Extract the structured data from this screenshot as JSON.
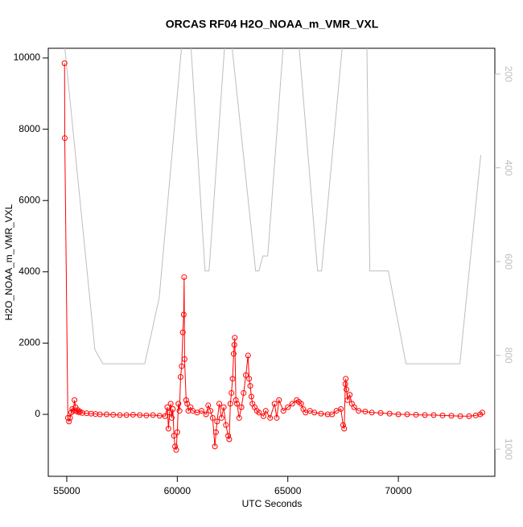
{
  "chart_data": {
    "type": "line",
    "title": "ORCAS RF04 H2O_NOAA_m_VMR_VXL",
    "x_label": "UTC Seconds",
    "y_label": "H2O_NOAA_m_VMR_VXL",
    "xlim": [
      54164,
      74364
    ],
    "ylim": [
      -1738,
      10271
    ],
    "y2lim": [
      1058,
      145
    ],
    "xticks": [
      55000,
      60000,
      65000,
      70000
    ],
    "yticks": [
      0,
      2000,
      4000,
      6000,
      8000,
      10000
    ],
    "y2ticks": [
      200,
      400,
      600,
      800,
      1000
    ],
    "series": [
      {
        "color": "#ff0000",
        "marker": "circle",
        "x": [
          54900,
          54910,
          55050,
          55100,
          55150,
          55200,
          55250,
          55300,
          55350,
          55400,
          55450,
          55500,
          55550,
          55600,
          55700,
          55900,
          56100,
          56300,
          56500,
          56800,
          57100,
          57400,
          57700,
          58000,
          58300,
          58600,
          58900,
          59200,
          59450,
          59550,
          59600,
          59650,
          59700,
          59750,
          59800,
          59850,
          59900,
          59950,
          60000,
          60050,
          60100,
          60150,
          60200,
          60250,
          60290,
          60310,
          60330,
          60400,
          60450,
          60500,
          60600,
          60700,
          60900,
          61100,
          61300,
          61400,
          61500,
          61600,
          61700,
          61750,
          61800,
          61900,
          62000,
          62100,
          62200,
          62300,
          62350,
          62400,
          62450,
          62500,
          62550,
          62580,
          62600,
          62650,
          62700,
          62800,
          62900,
          63000,
          63100,
          63200,
          63250,
          63300,
          63350,
          63400,
          63500,
          63600,
          63700,
          63900,
          64000,
          64200,
          64400,
          64500,
          64600,
          64800,
          65000,
          65200,
          65400,
          65500,
          65600,
          65700,
          65800,
          66000,
          66200,
          66500,
          66800,
          67000,
          67200,
          67400,
          67500,
          67550,
          67600,
          67620,
          67650,
          67700,
          67800,
          67900,
          68000,
          68200,
          68500,
          68800,
          69200,
          69600,
          70000,
          70400,
          70800,
          71200,
          71600,
          72000,
          72400,
          72800,
          73200,
          73500,
          73700,
          73800
        ],
        "values": [
          9850,
          7750,
          -100,
          -200,
          -100,
          50,
          150,
          100,
          400,
          200,
          80,
          120,
          60,
          80,
          40,
          30,
          20,
          10,
          0,
          0,
          -10,
          -20,
          -20,
          -10,
          -20,
          -30,
          -20,
          -40,
          -50,
          200,
          -400,
          50,
          300,
          -100,
          150,
          -600,
          -900,
          -1000,
          -500,
          300,
          100,
          1050,
          1350,
          2300,
          2800,
          3850,
          1550,
          400,
          300,
          100,
          200,
          100,
          50,
          100,
          0,
          250,
          100,
          -100,
          -900,
          -500,
          -200,
          300,
          -100,
          200,
          -300,
          -600,
          -700,
          300,
          600,
          1000,
          1700,
          1950,
          2150,
          400,
          300,
          -100,
          200,
          600,
          1100,
          1650,
          1000,
          800,
          500,
          300,
          200,
          100,
          50,
          -50,
          100,
          -100,
          300,
          -100,
          400,
          100,
          200,
          300,
          400,
          350,
          300,
          150,
          50,
          100,
          50,
          20,
          0,
          0,
          100,
          150,
          -300,
          -400,
          850,
          1000,
          700,
          400,
          550,
          300,
          200,
          100,
          80,
          50,
          40,
          20,
          0,
          0,
          -10,
          -20,
          -20,
          -30,
          -40,
          -50,
          -50,
          -30,
          0,
          50
        ]
      },
      {
        "color": "#bebebe",
        "axis": "y2",
        "x": [
          54818,
          56273,
          56636,
          58527,
          59182,
          60273,
          60564,
          61255,
          61436,
          62200,
          62382,
          63545,
          63691,
          63873,
          64091,
          64855,
          65436,
          66345,
          66527,
          67545,
          68564,
          68709,
          69546,
          70346,
          72782,
          73727
        ],
        "values": [
          100,
          788,
          818,
          818,
          677,
          100,
          100,
          620,
          620,
          100,
          100,
          620,
          620,
          588,
          588,
          100,
          100,
          620,
          620,
          100,
          100,
          620,
          620,
          818,
          818,
          373
        ]
      }
    ]
  }
}
